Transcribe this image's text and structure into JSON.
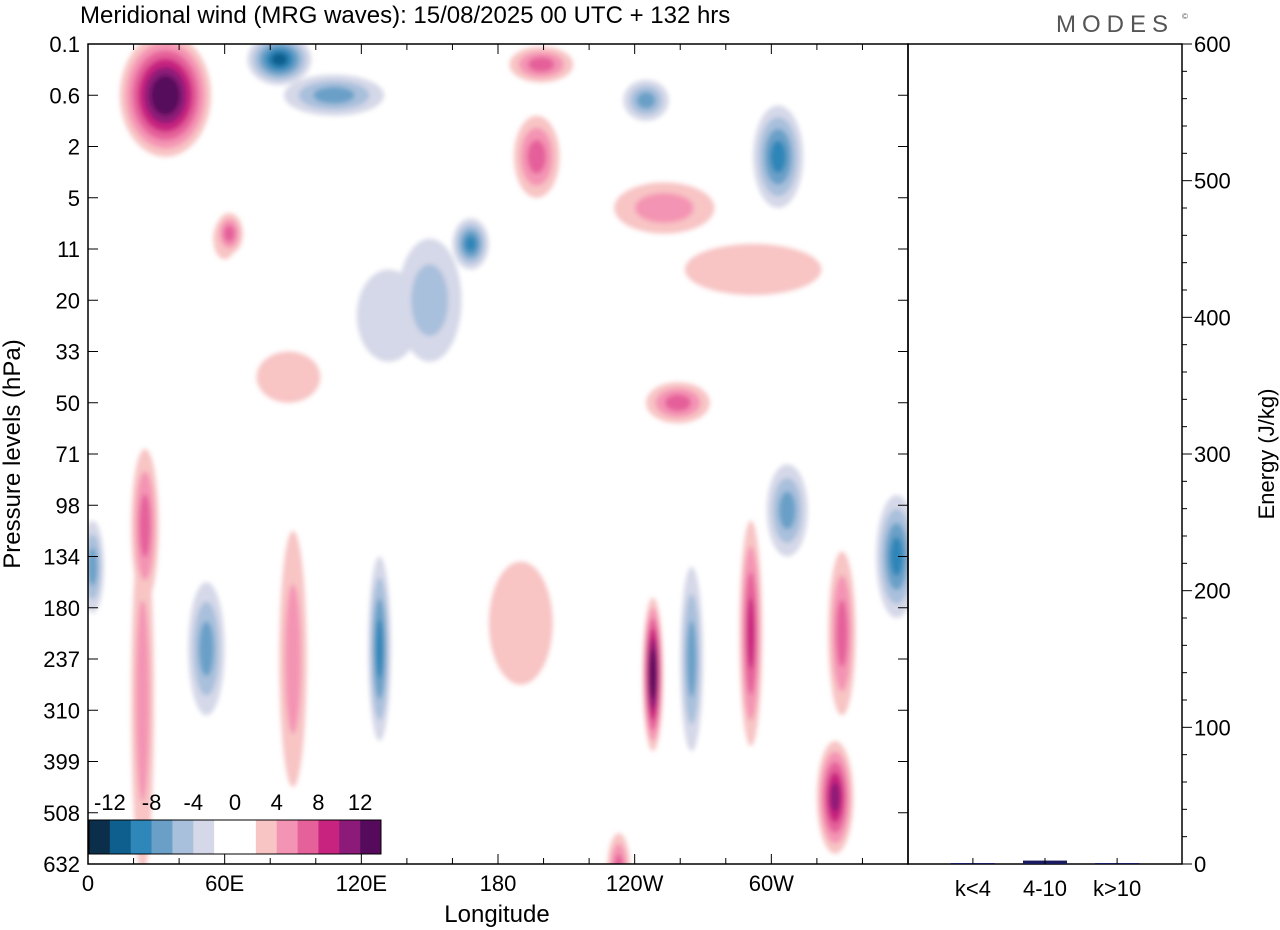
{
  "chart_data": {
    "type": "heatmap",
    "title": "Meridional wind (MRG waves):  15/08/2025  00 UTC  + 132 hrs",
    "brand": "MODES",
    "brand_mark": "©",
    "xlabel": "Longitude",
    "ylabel": "Pressure levels (hPa)",
    "x_ticks": [
      "0",
      "60E",
      "120E",
      "180",
      "120W",
      "60W"
    ],
    "x_range_deg": [
      0,
      360
    ],
    "y_ticks": [
      "0.1",
      "0.6",
      "2",
      "5",
      "11",
      "20",
      "33",
      "50",
      "71",
      "98",
      "134",
      "180",
      "237",
      "310",
      "399",
      "508",
      "632"
    ],
    "colorbar": {
      "labels": [
        "-12",
        "-8",
        "-4",
        "0",
        "4",
        "8",
        "12"
      ],
      "levels": [
        -14,
        -12,
        -10,
        -8,
        -6,
        -4,
        -2,
        0,
        2,
        4,
        6,
        8,
        10,
        12,
        14
      ],
      "colors": [
        "#0b2f4a",
        "#0f5f8e",
        "#2f86b8",
        "#6aa0c8",
        "#a9c0dc",
        "#d5d8e8",
        "#ffffff",
        "#ffffff",
        "#f8c4c4",
        "#f494b4",
        "#e5619a",
        "#c8237f",
        "#8c1a78",
        "#560a5c"
      ]
    },
    "energy_panel": {
      "ylabel": "Energy (J/kg)",
      "y_ticks": [
        "0",
        "100",
        "200",
        "300",
        "400",
        "500",
        "600"
      ],
      "ylim": [
        0,
        600
      ],
      "categories": [
        "k<4",
        "4-10",
        "k>10"
      ],
      "values": [
        0.5,
        2.5,
        0.3
      ]
    },
    "features": [
      {
        "sign": "pos",
        "level": 7,
        "lon": 34,
        "lev": 1.0,
        "dlon": 20,
        "dlev": 1.2
      },
      {
        "sign": "pos",
        "level": 6,
        "lon": 25,
        "lev": 0.3,
        "dlon": 6,
        "dlev": 0.3
      },
      {
        "sign": "neg",
        "level": 5,
        "lon": 84,
        "lev": 0.3,
        "dlon": 14,
        "dlev": 0.5
      },
      {
        "sign": "neg",
        "level": 3,
        "lon": 108,
        "lev": 1.0,
        "dlon": 22,
        "dlev": 0.4
      },
      {
        "sign": "neg",
        "level": 4,
        "lon": 168,
        "lev": 3.9,
        "dlon": 8,
        "dlev": 0.5
      },
      {
        "sign": "pos",
        "level": 3,
        "lon": 199,
        "lev": 0.4,
        "dlon": 14,
        "dlev": 0.35
      },
      {
        "sign": "neg",
        "level": 3,
        "lon": 245,
        "lev": 1.1,
        "dlon": 10,
        "dlev": 0.4
      },
      {
        "sign": "neg",
        "level": 4,
        "lon": 303,
        "lev": 2.2,
        "dlon": 11,
        "dlev": 1.0
      },
      {
        "sign": "pos",
        "level": 2,
        "lon": 253,
        "lev": 3.2,
        "dlon": 22,
        "dlev": 0.5
      },
      {
        "sign": "pos",
        "level": 3,
        "lon": 62,
        "lev": 3.7,
        "dlon": 6,
        "dlev": 0.4
      },
      {
        "sign": "pos",
        "level": 3,
        "lon": 197,
        "lev": 2.2,
        "dlon": 10,
        "dlev": 0.8
      },
      {
        "sign": "pos",
        "level": 1,
        "lon": 292,
        "lev": 4.4,
        "dlon": 30,
        "dlev": 0.5
      },
      {
        "sign": "neg",
        "level": 1,
        "lon": 132,
        "lev": 5.3,
        "dlon": 14,
        "dlev": 0.9
      },
      {
        "sign": "pos",
        "level": 3,
        "lon": 259,
        "lev": 7.0,
        "dlon": 14,
        "dlev": 0.4
      },
      {
        "sign": "pos",
        "level": 1,
        "lon": 88,
        "lev": 6.5,
        "dlon": 14,
        "dlev": 0.5
      },
      {
        "sign": "pos",
        "level": 3,
        "lon": 25,
        "lev": 9.4,
        "dlon": 6,
        "dlev": 1.5
      },
      {
        "sign": "pos",
        "level": 2,
        "lon": 24,
        "lev": 12.8,
        "dlon": 5,
        "dlev": 3.4
      },
      {
        "sign": "neg",
        "level": 3,
        "lon": 52,
        "lev": 11.8,
        "dlon": 8,
        "dlev": 1.3
      },
      {
        "sign": "pos",
        "level": 2,
        "lon": 90,
        "lev": 12.0,
        "dlon": 6,
        "dlev": 2.5
      },
      {
        "sign": "neg",
        "level": 4,
        "lon": 128,
        "lev": 11.8,
        "dlon": 5,
        "dlev": 1.8
      },
      {
        "sign": "pos",
        "level": 1,
        "lon": 190,
        "lev": 11.3,
        "dlon": 14,
        "dlev": 1.2
      },
      {
        "sign": "pos",
        "level": 7,
        "lon": 248,
        "lev": 12.3,
        "dlon": 4.5,
        "dlev": 1.5
      },
      {
        "sign": "neg",
        "level": 3,
        "lon": 265,
        "lev": 12.0,
        "dlon": 5,
        "dlev": 1.8
      },
      {
        "sign": "pos",
        "level": 4,
        "lon": 291,
        "lev": 11.5,
        "dlon": 5,
        "dlev": 2.2
      },
      {
        "sign": "pos",
        "level": 3,
        "lon": 331,
        "lev": 11.5,
        "dlon": 6,
        "dlev": 1.6
      },
      {
        "sign": "neg",
        "level": 4,
        "lon": 355,
        "lev": 10.0,
        "dlon": 9,
        "dlev": 1.2
      },
      {
        "sign": "neg",
        "level": 3,
        "lon": 2,
        "lev": 10.2,
        "dlon": 5,
        "dlev": 0.9
      },
      {
        "sign": "pos",
        "level": 5,
        "lon": 328,
        "lev": 14.7,
        "dlon": 8,
        "dlev": 1.1
      },
      {
        "sign": "pos",
        "level": 3,
        "lon": 233,
        "lev": 16.1,
        "dlon": 5,
        "dlev": 0.7
      },
      {
        "sign": "neg",
        "level": 3,
        "lon": 307,
        "lev": 9.1,
        "dlon": 9,
        "dlev": 0.9
      },
      {
        "sign": "pos",
        "level": 2,
        "lon": 60,
        "lev": 3.8,
        "dlon": 5,
        "dlev": 0.4
      },
      {
        "sign": "neg",
        "level": 2,
        "lon": 150,
        "lev": 5.0,
        "dlon": 14,
        "dlev": 1.2
      }
    ]
  }
}
